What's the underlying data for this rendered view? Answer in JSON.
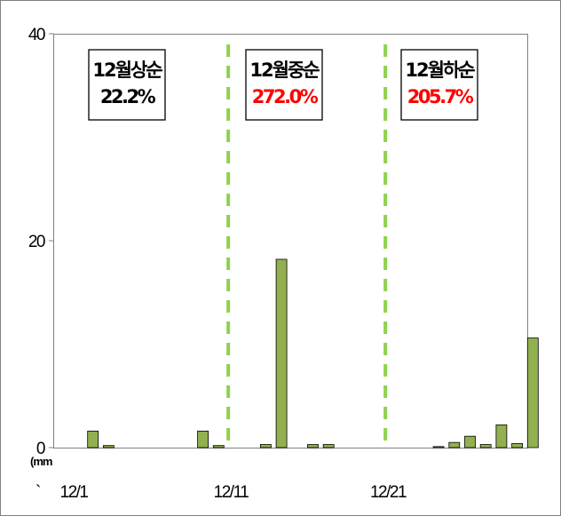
{
  "chart_data": {
    "type": "bar",
    "ylim": [
      0,
      40
    ],
    "y_ticks": [
      {
        "value": 0,
        "label": "0"
      },
      {
        "value": 20,
        "label": "20"
      },
      {
        "value": 40,
        "label": "40"
      }
    ],
    "unit_label": "(mm",
    "stray_mark": "`",
    "x_tick_labels": [
      {
        "day": 1,
        "label": "12/1"
      },
      {
        "day": 11,
        "label": "12/11"
      },
      {
        "day": 21,
        "label": "12/21"
      }
    ],
    "days": [
      1,
      2,
      3,
      4,
      5,
      6,
      7,
      8,
      9,
      10,
      11,
      12,
      13,
      14,
      15,
      16,
      17,
      18,
      19,
      20,
      21,
      22,
      23,
      24,
      25,
      26,
      27,
      28,
      29,
      30,
      31
    ],
    "values": [
      0,
      1.6,
      0.2,
      0,
      0,
      0,
      0,
      0,
      1.6,
      0.2,
      0,
      0,
      0.3,
      18.2,
      0,
      0.3,
      0.3,
      0,
      0,
      0,
      0,
      0,
      0,
      0.1,
      0.5,
      1.1,
      0.3,
      2.2,
      0.4,
      10.6,
      0
    ],
    "divider_after_days": [
      10,
      20
    ],
    "period_boxes": [
      {
        "label": "12월상순",
        "value": "22.2%",
        "value_color": "#000000"
      },
      {
        "label": "12월중순",
        "value": "272.0%",
        "value_color": "#ff0000"
      },
      {
        "label": "12월하순",
        "value": "205.7%",
        "value_color": "#ff0000"
      }
    ],
    "colors": {
      "bar": "#92b050",
      "divider": "#8fd14f"
    },
    "grid": false,
    "legend": "none"
  }
}
